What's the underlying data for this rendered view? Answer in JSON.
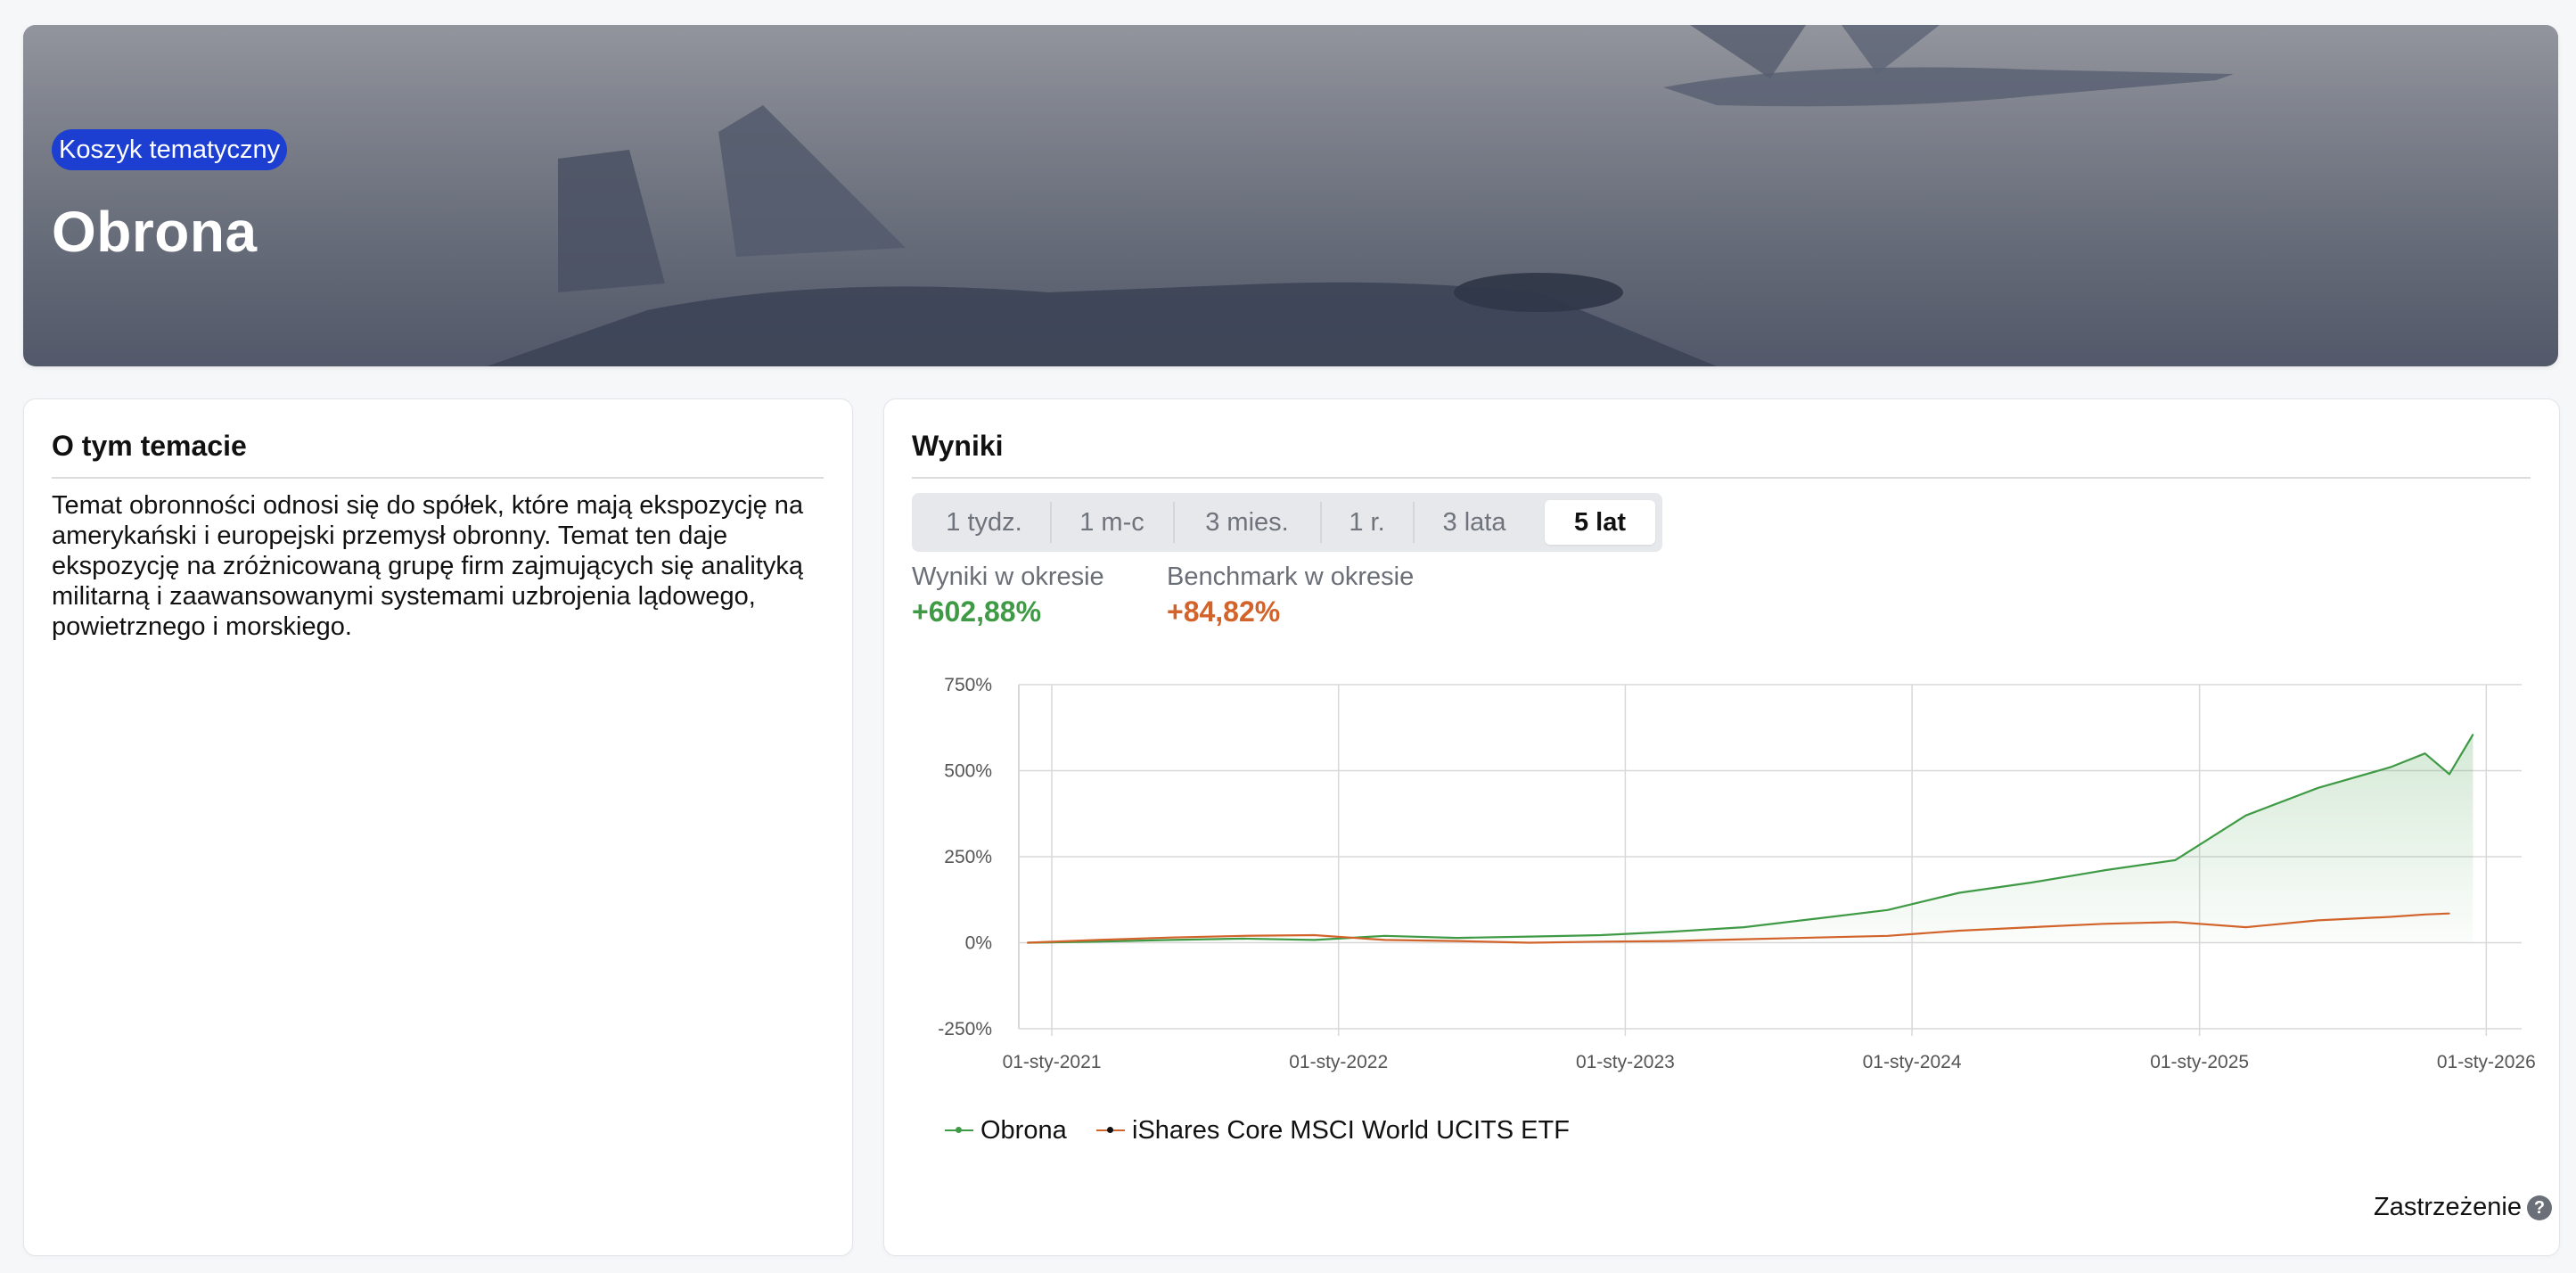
{
  "hero": {
    "badge": "Koszyk tematyczny",
    "title": "Obrona"
  },
  "about": {
    "heading": "O tym temacie",
    "text": "Temat obronności odnosi się do spółek, które mają ekspozycję na amerykański i europejski przemysł obronny. Temat ten daje ekspozycję na zróżnicowaną grupę firm zajmujących się analityką militarną i zaawansowanymi systemami uzbrojenia lądowego, powietrznego i morskiego."
  },
  "results": {
    "heading": "Wyniki",
    "tabs": [
      {
        "label": "1 tydz.",
        "active": false
      },
      {
        "label": "1 m-c",
        "active": false
      },
      {
        "label": "3 mies.",
        "active": false
      },
      {
        "label": "1 r.",
        "active": false
      },
      {
        "label": "3 lata",
        "active": false
      },
      {
        "label": "5 lat",
        "active": true
      }
    ],
    "period_label": "Wyniki w okresie",
    "period_value": "+602,88%",
    "benchmark_label": "Benchmark w okresie",
    "benchmark_value": "+84,82%",
    "disclaimer": "Zastrzeżenie",
    "disclaimer_icon": "question-circle-icon"
  },
  "colors": {
    "accent_badge": "#1d3fd1",
    "positive": "#3f9a45",
    "benchmark": "#d2632a"
  },
  "chart_data": {
    "type": "line",
    "ylim": [
      -250,
      750
    ],
    "yticks": [
      -250,
      0,
      250,
      500,
      750
    ],
    "ytick_labels": [
      "-250%",
      "0%",
      "250%",
      "500%",
      "750%"
    ],
    "xtick_labels": [
      "01-sty-2021",
      "01-sty-2022",
      "01-sty-2023",
      "01-sty-2024",
      "01-sty-2025",
      "01-sty-2026"
    ],
    "grid": true,
    "legend_position": "bottom-left",
    "x": [
      "2020-12-01",
      "2021-03-01",
      "2021-06-01",
      "2021-09-01",
      "2021-12-01",
      "2022-03-01",
      "2022-06-01",
      "2022-09-01",
      "2022-12-01",
      "2023-03-01",
      "2023-06-01",
      "2023-09-01",
      "2023-12-01",
      "2024-03-01",
      "2024-06-01",
      "2024-09-01",
      "2024-12-01",
      "2025-03-01",
      "2025-06-01",
      "2025-09-01",
      "2025-10-15",
      "2025-11-15",
      "2025-12-15"
    ],
    "series": [
      {
        "name": "Obrona",
        "color": "#3f9a45",
        "area": true,
        "values": [
          0,
          3,
          8,
          12,
          8,
          20,
          14,
          18,
          22,
          32,
          45,
          70,
          95,
          145,
          175,
          210,
          240,
          370,
          450,
          510,
          550,
          490,
          605
        ]
      },
      {
        "name": "iShares Core MSCI World UCITS ETF",
        "color": "#d2632a",
        "area": false,
        "values": [
          0,
          8,
          15,
          20,
          22,
          8,
          5,
          0,
          3,
          5,
          10,
          15,
          20,
          35,
          45,
          55,
          60,
          45,
          65,
          75,
          82,
          85,
          null
        ]
      }
    ]
  }
}
